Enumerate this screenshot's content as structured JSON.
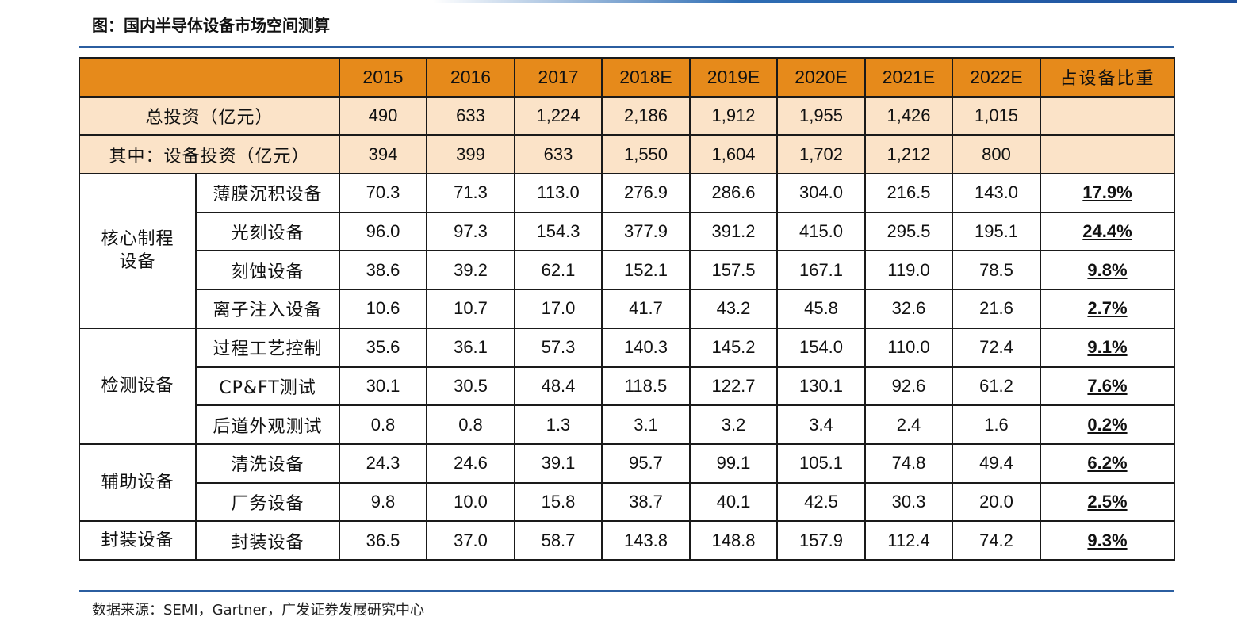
{
  "title": "图：国内半导体设备市场空间测算",
  "header": {
    "blank": "",
    "years": [
      "2015",
      "2016",
      "2017",
      "2018E",
      "2019E",
      "2020E",
      "2021E",
      "2022E"
    ],
    "share_label": "占设备比重"
  },
  "summary_rows": [
    {
      "label": "总投资（亿元）",
      "values": [
        "490",
        "633",
        "1,224",
        "2,186",
        "1,912",
        "1,955",
        "1,426",
        "1,015"
      ]
    },
    {
      "label": "其中：设备投资（亿元）",
      "values": [
        "394",
        "399",
        "633",
        "1,550",
        "1,604",
        "1,702",
        "1,212",
        "800"
      ]
    }
  ],
  "groups": [
    {
      "name_lines": [
        "核心制程",
        "设备"
      ],
      "rows": [
        {
          "label": "薄膜沉积设备",
          "values": [
            "70.3",
            "71.3",
            "113.0",
            "276.9",
            "286.6",
            "304.0",
            "216.5",
            "143.0"
          ],
          "share": "17.9%"
        },
        {
          "label": "光刻设备",
          "values": [
            "96.0",
            "97.3",
            "154.3",
            "377.9",
            "391.2",
            "415.0",
            "295.5",
            "195.1"
          ],
          "share": "24.4%"
        },
        {
          "label": "刻蚀设备",
          "values": [
            "38.6",
            "39.2",
            "62.1",
            "152.1",
            "157.5",
            "167.1",
            "119.0",
            "78.5"
          ],
          "share": "9.8%"
        },
        {
          "label": "离子注入设备",
          "values": [
            "10.6",
            "10.7",
            "17.0",
            "41.7",
            "43.2",
            "45.8",
            "32.6",
            "21.6"
          ],
          "share": "2.7%"
        }
      ]
    },
    {
      "name_lines": [
        "检测设备"
      ],
      "rows": [
        {
          "label": "过程工艺控制",
          "values": [
            "35.6",
            "36.1",
            "57.3",
            "140.3",
            "145.2",
            "154.0",
            "110.0",
            "72.4"
          ],
          "share": "9.1%"
        },
        {
          "label": "CP&FT测试",
          "values": [
            "30.1",
            "30.5",
            "48.4",
            "118.5",
            "122.7",
            "130.1",
            "92.6",
            "61.2"
          ],
          "share": "7.6%"
        },
        {
          "label": "后道外观测试",
          "values": [
            "0.8",
            "0.8",
            "1.3",
            "3.1",
            "3.2",
            "3.4",
            "2.4",
            "1.6"
          ],
          "share": "0.2%"
        }
      ]
    },
    {
      "name_lines": [
        "辅助设备"
      ],
      "rows": [
        {
          "label": "清洗设备",
          "values": [
            "24.3",
            "24.6",
            "39.1",
            "95.7",
            "99.1",
            "105.1",
            "74.8",
            "49.4"
          ],
          "share": "6.2%"
        },
        {
          "label": "厂务设备",
          "values": [
            "9.8",
            "10.0",
            "15.8",
            "38.7",
            "40.1",
            "42.5",
            "30.3",
            "20.0"
          ],
          "share": "2.5%"
        }
      ]
    },
    {
      "name_lines": [
        "封装设备"
      ],
      "rows": [
        {
          "label": "封装设备",
          "values": [
            "36.5",
            "37.0",
            "58.7",
            "143.8",
            "148.8",
            "157.9",
            "112.4",
            "74.2"
          ],
          "share": "9.3%"
        }
      ]
    }
  ],
  "source": "数据来源：SEMI，Gartner，广发证券发展研究中心",
  "colors": {
    "header_bg": "#e68a1b",
    "summary_bg": "#fbe3c8",
    "rule": "#2b5ea0"
  }
}
